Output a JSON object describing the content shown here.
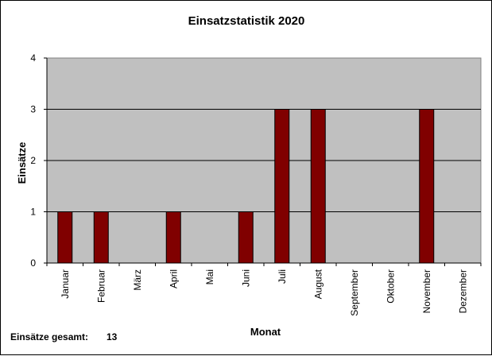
{
  "chart_data": {
    "type": "bar",
    "title": "Einsatzstatistik 2020",
    "xlabel": "Monat",
    "ylabel": "Einsätze",
    "categories": [
      "Januar",
      "Februar",
      "März",
      "April",
      "Mai",
      "Juni",
      "Juli",
      "August",
      "September",
      "Oktober",
      "November",
      "Dezember"
    ],
    "values": [
      1,
      1,
      0,
      1,
      0,
      1,
      3,
      3,
      0,
      0,
      3,
      0
    ],
    "ylim": [
      0,
      4
    ],
    "yticks": [
      "0",
      "1",
      "2",
      "3",
      "4"
    ],
    "grid": true,
    "legend": "none",
    "bar_color": "#800000",
    "plot_background": "#c0c0c0"
  },
  "footer": {
    "total_label": "Einsätze gesamt:",
    "total_value": "13"
  }
}
